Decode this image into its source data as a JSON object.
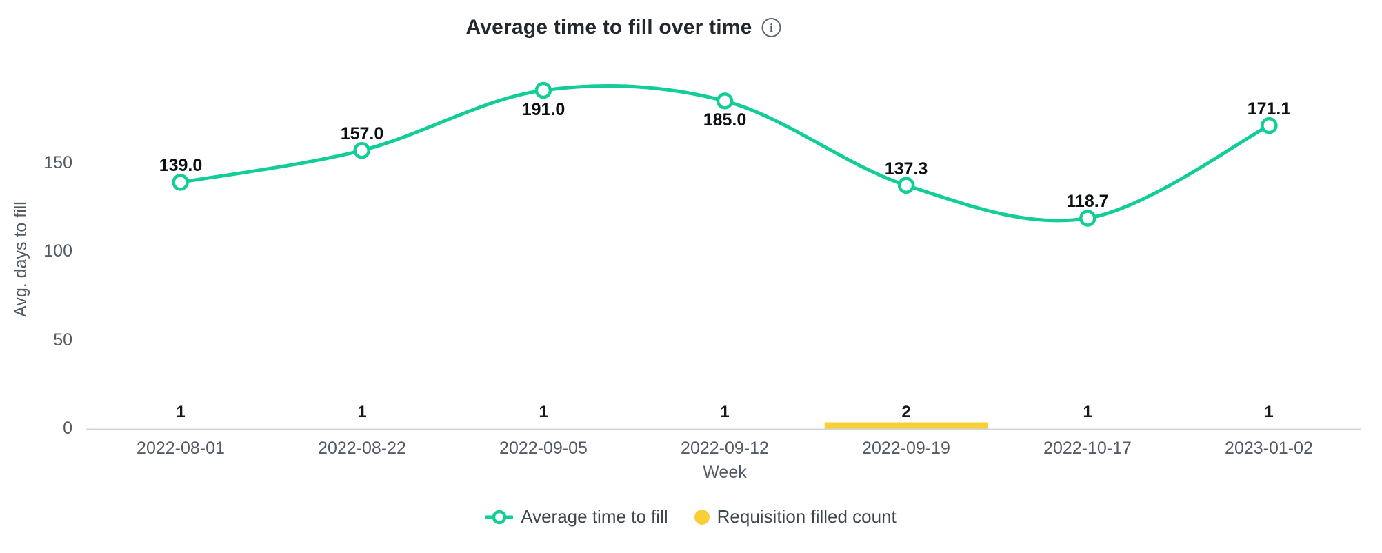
{
  "header": {
    "title": "Average time to fill over time",
    "info_icon_glyph": "i"
  },
  "chart_data": {
    "type": "line",
    "title": "Average time to fill over time",
    "xlabel": "Week",
    "ylabel": "Avg. days to fill",
    "x": [
      "2022-08-01",
      "2022-08-22",
      "2022-09-05",
      "2022-09-12",
      "2022-09-19",
      "2022-10-17",
      "2023-01-02"
    ],
    "series": [
      {
        "name": "Average time to fill",
        "type": "line",
        "smooth": true,
        "color": "#12cd97",
        "values": [
          139.0,
          157.0,
          191.0,
          185.0,
          137.3,
          118.7,
          171.1
        ],
        "value_labels": [
          "139.0",
          "157.0",
          "191.0",
          "185.0",
          "137.3",
          "118.7",
          "171.1"
        ],
        "label_positions": [
          "top",
          "top",
          "bottom",
          "bottom",
          "top",
          "top",
          "top"
        ]
      },
      {
        "name": "Requisition filled count",
        "type": "bar",
        "color": "#f9cf38",
        "values": [
          1,
          1,
          1,
          1,
          2,
          1,
          1
        ]
      }
    ],
    "y_ticks": [
      0,
      50,
      100,
      150
    ],
    "ylim": [
      0,
      191
    ],
    "grid": false,
    "legend_position": "bottom"
  },
  "legend": {
    "items": [
      {
        "label": "Average time to fill",
        "marker": "line-circle-icon",
        "color": "#12cd97"
      },
      {
        "label": "Requisition filled count",
        "marker": "filled-circle-icon",
        "color": "#f9cf38"
      }
    ]
  },
  "colors": {
    "line_green": "#12cd97",
    "bar_yellow": "#f9cf38",
    "axis_line": "#ccd5e0",
    "tick_text": "#525b64",
    "title_text": "#22282e",
    "point_label_text": "#0d1013"
  }
}
